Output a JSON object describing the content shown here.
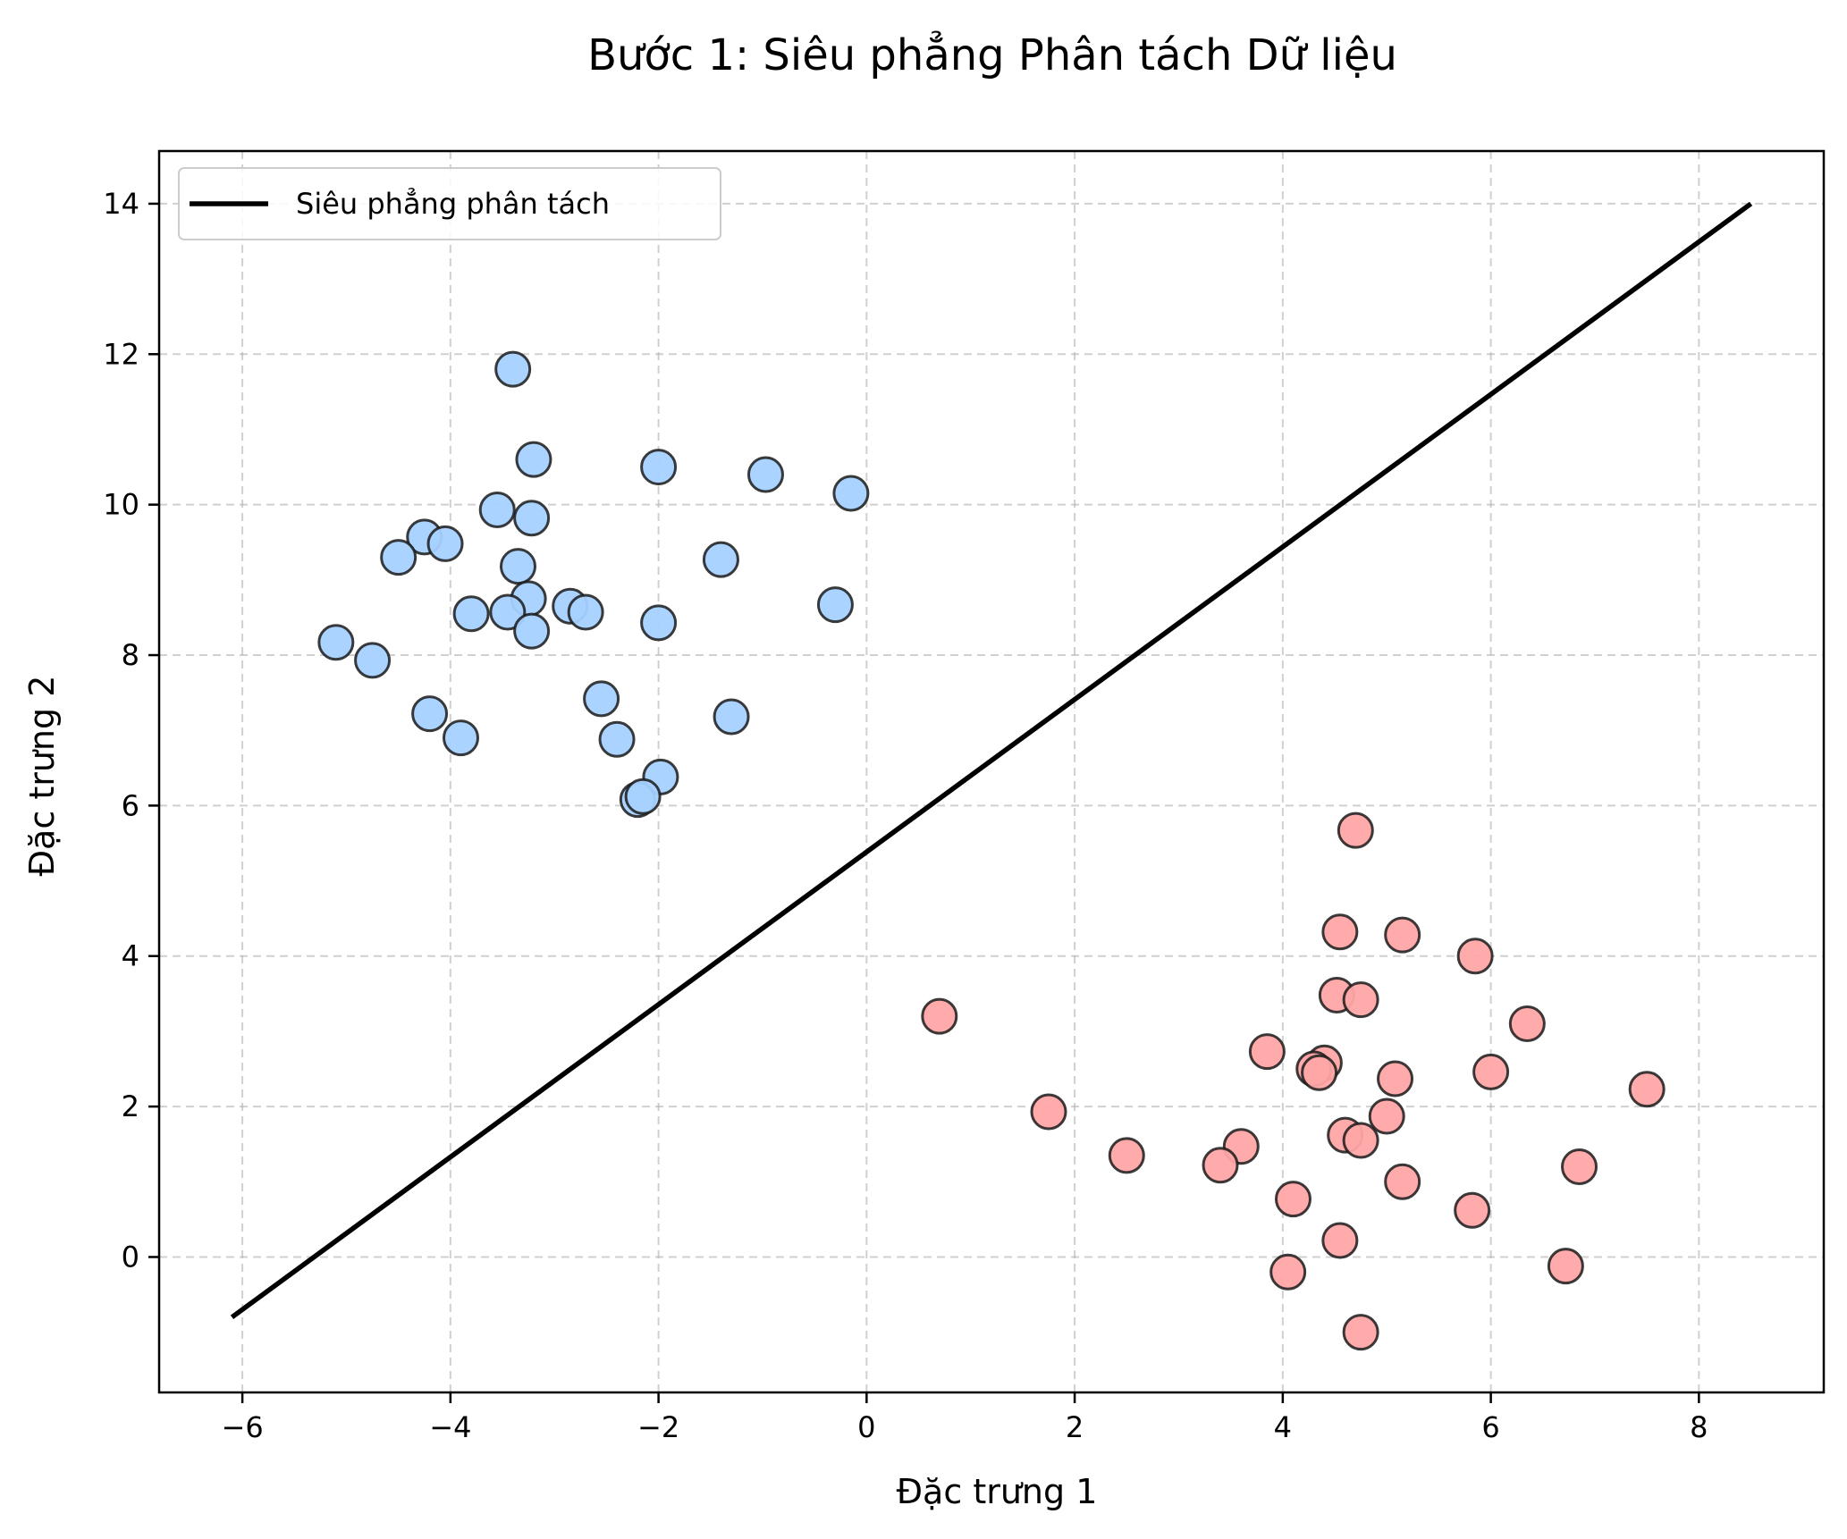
{
  "chart_data": {
    "type": "scatter",
    "title": "Bước 1: Siêu phẳng Phân tách Dữ liệu",
    "xlabel": "Đặc trưng 1",
    "ylabel": "Đặc trưng 2",
    "xlim": [
      -6.8,
      9.2
    ],
    "ylim": [
      -1.8,
      14.7
    ],
    "x_ticks": [
      -6,
      -4,
      -2,
      0,
      2,
      4,
      6,
      8
    ],
    "x_tick_labels": [
      "−6",
      "−4",
      "−2",
      "0",
      "2",
      "4",
      "6",
      "8"
    ],
    "y_ticks": [
      0,
      2,
      4,
      6,
      8,
      10,
      12,
      14
    ],
    "y_tick_labels": [
      "0",
      "2",
      "4",
      "6",
      "8",
      "10",
      "12",
      "14"
    ],
    "grid": true,
    "legend": {
      "position": "top-left",
      "entries": [
        {
          "label": "Siêu phẳng phân tách",
          "type": "line",
          "color": "#000000"
        }
      ]
    },
    "line": {
      "name": "Siêu phẳng phân tách",
      "color": "#000000",
      "points": [
        [
          -6.1,
          -0.8
        ],
        [
          8.5,
          14.0
        ]
      ]
    },
    "series": [
      {
        "name": "class-blue",
        "color": "#a6d1ff",
        "edge_color": "#1a1a1a",
        "points": [
          [
            -3.4,
            11.8
          ],
          [
            -3.2,
            10.6
          ],
          [
            -2.0,
            10.5
          ],
          [
            -0.97,
            10.4
          ],
          [
            -0.15,
            10.15
          ],
          [
            -3.55,
            9.93
          ],
          [
            -3.22,
            9.82
          ],
          [
            -4.25,
            9.57
          ],
          [
            -4.05,
            9.48
          ],
          [
            -4.5,
            9.3
          ],
          [
            -3.35,
            9.18
          ],
          [
            -1.4,
            9.27
          ],
          [
            -3.25,
            8.75
          ],
          [
            -2.85,
            8.65
          ],
          [
            -2.7,
            8.57
          ],
          [
            -3.8,
            8.55
          ],
          [
            -3.45,
            8.57
          ],
          [
            -0.3,
            8.67
          ],
          [
            -2.0,
            8.43
          ],
          [
            -3.22,
            8.32
          ],
          [
            -5.1,
            8.17
          ],
          [
            -4.75,
            7.93
          ],
          [
            -2.55,
            7.42
          ],
          [
            -4.2,
            7.22
          ],
          [
            -1.3,
            7.18
          ],
          [
            -3.9,
            6.9
          ],
          [
            -2.4,
            6.88
          ],
          [
            -1.98,
            6.38
          ],
          [
            -2.2,
            6.08
          ],
          [
            -2.15,
            6.12
          ]
        ]
      },
      {
        "name": "class-red",
        "color": "#ffa6a6",
        "edge_color": "#1a1a1a",
        "points": [
          [
            4.7,
            5.67
          ],
          [
            4.55,
            4.32
          ],
          [
            5.15,
            4.28
          ],
          [
            5.85,
            4.0
          ],
          [
            4.52,
            3.48
          ],
          [
            4.75,
            3.42
          ],
          [
            0.7,
            3.2
          ],
          [
            6.35,
            3.1
          ],
          [
            3.85,
            2.73
          ],
          [
            4.4,
            2.58
          ],
          [
            4.3,
            2.5
          ],
          [
            4.35,
            2.45
          ],
          [
            5.08,
            2.37
          ],
          [
            6.0,
            2.46
          ],
          [
            7.5,
            2.23
          ],
          [
            1.75,
            1.93
          ],
          [
            5.0,
            1.87
          ],
          [
            4.6,
            1.62
          ],
          [
            4.75,
            1.55
          ],
          [
            3.6,
            1.47
          ],
          [
            2.5,
            1.35
          ],
          [
            3.4,
            1.22
          ],
          [
            6.85,
            1.2
          ],
          [
            5.15,
            1.0
          ],
          [
            4.1,
            0.77
          ],
          [
            5.82,
            0.62
          ],
          [
            4.55,
            0.22
          ],
          [
            6.72,
            -0.12
          ],
          [
            4.05,
            -0.2
          ],
          [
            4.75,
            -1.0
          ]
        ]
      }
    ]
  }
}
